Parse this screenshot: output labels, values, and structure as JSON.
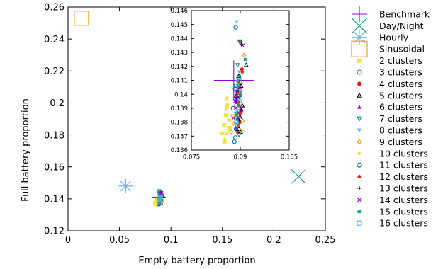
{
  "chart_data": {
    "type": "scatter",
    "title": "",
    "xlabel": "Empty battery proportion",
    "ylabel": "Full battery proportion",
    "xlim": [
      0,
      0.25
    ],
    "ylim": [
      0.12,
      0.26
    ],
    "xticks": [
      0,
      0.05,
      0.1,
      0.15,
      0.2,
      0.25
    ],
    "xtick_labels": [
      "0",
      "0.05",
      "0.1",
      "0.15",
      "0.2",
      "0.25"
    ],
    "yticks": [
      0.12,
      0.14,
      0.16,
      0.18,
      0.2,
      0.22,
      0.24,
      0.26
    ],
    "ytick_labels": [
      "0.12",
      "0.14",
      "0.16",
      "0.18",
      "0.2",
      "0.22",
      "0.24",
      "0.26"
    ],
    "grid": false,
    "legend_position": "outside-right",
    "series": [
      {
        "name": "Benchmark",
        "marker": "plus",
        "size": "large",
        "color": "#9400d3",
        "x": [
          0.088
        ],
        "y": [
          0.141
        ]
      },
      {
        "name": "Day/Night",
        "marker": "cross",
        "size": "large",
        "color": "#009e73",
        "x": [
          0.224
        ],
        "y": [
          0.154
        ]
      },
      {
        "name": "Hourly",
        "marker": "star",
        "size": "large",
        "color": "#56b4e9",
        "x": [
          0.056
        ],
        "y": [
          0.148
        ]
      },
      {
        "name": "Sinusoidal",
        "marker": "square-open",
        "size": "large",
        "color": "#e69f00",
        "x": [
          0.013
        ],
        "y": [
          0.253
        ]
      },
      {
        "name": "2 clusters",
        "marker": "square-filled",
        "color": "#f0e442",
        "x": [
          0.0845,
          0.085,
          0.0855,
          0.086,
          0.0852,
          0.0858,
          0.0865,
          0.087
        ],
        "y": [
          0.1372,
          0.1378,
          0.1385,
          0.1391,
          0.1366,
          0.1397,
          0.1382,
          0.1376
        ]
      },
      {
        "name": "3 clusters",
        "marker": "circle-open",
        "color": "#0072b2",
        "x": [
          0.0882,
          0.0887,
          0.0893,
          0.0878,
          0.0889,
          0.0884,
          0.0895,
          0.0886
        ],
        "y": [
          0.1366,
          0.1375,
          0.1382,
          0.139,
          0.1398,
          0.1404,
          0.1412,
          0.1448
        ]
      },
      {
        "name": "4 clusters",
        "marker": "circle-filled",
        "color": "#e51e10",
        "x": [
          0.0892,
          0.0898,
          0.0903,
          0.0889,
          0.0896,
          0.0894,
          0.0905,
          0.0899
        ],
        "y": [
          0.1373,
          0.138,
          0.1388,
          0.1395,
          0.1403,
          0.141,
          0.1418,
          0.1438
        ]
      },
      {
        "name": "5 clusters",
        "marker": "triangle-open",
        "color": "#000000",
        "x": [
          0.0893,
          0.0899,
          0.0906,
          0.0888,
          0.0902,
          0.0895,
          0.0918,
          0.0901
        ],
        "y": [
          0.1377,
          0.1384,
          0.1392,
          0.1399,
          0.1406,
          0.1413,
          0.1421,
          0.1373
        ]
      },
      {
        "name": "6 clusters",
        "marker": "triangle-filled",
        "color": "#9400d3",
        "x": [
          0.0886,
          0.0893,
          0.09,
          0.0891,
          0.0897,
          0.0904,
          0.0889,
          0.0895
        ],
        "y": [
          0.1376,
          0.1383,
          0.1391,
          0.1398,
          0.1405,
          0.1389,
          0.1402,
          0.1395
        ]
      },
      {
        "name": "7 clusters",
        "marker": "triangle-down-open",
        "color": "#009e73",
        "x": [
          0.0896,
          0.0891,
          0.0888,
          0.0894,
          0.0899,
          0.0901,
          0.0892,
          0.0897
        ],
        "y": [
          0.1371,
          0.1379,
          0.1386,
          0.1393,
          0.14,
          0.1407,
          0.1421,
          0.1438
        ]
      },
      {
        "name": "8 clusters",
        "marker": "triangle-down-filled",
        "color": "#56b4e9",
        "x": [
          0.0887,
          0.0894,
          0.0898,
          0.0892,
          0.0903,
          0.089,
          0.0896,
          0.0889
        ],
        "y": [
          0.1374,
          0.1381,
          0.1388,
          0.1395,
          0.1402,
          0.1409,
          0.1416,
          0.1452
        ]
      },
      {
        "name": "9 clusters",
        "marker": "diamond-open",
        "color": "#e69f00",
        "x": [
          0.0872,
          0.0879,
          0.0885,
          0.0901,
          0.0907,
          0.0896,
          0.0893,
          0.0912
        ],
        "y": [
          0.1373,
          0.1379,
          0.1385,
          0.1374,
          0.1381,
          0.1392,
          0.1399,
          0.1428
        ]
      },
      {
        "name": "10 clusters",
        "marker": "diamond-filled",
        "color": "#f0e442",
        "x": [
          0.0852,
          0.0858,
          0.0863,
          0.0868,
          0.0873,
          0.0856,
          0.0861,
          0.0866,
          0.0877,
          0.0882,
          0.0849
        ],
        "y": [
          0.1368,
          0.1372,
          0.1376,
          0.1381,
          0.1385,
          0.1389,
          0.1393,
          0.1374,
          0.1379,
          0.1384,
          0.1366
        ]
      },
      {
        "name": "11 clusters",
        "marker": "circle-open",
        "color": "#0072b2",
        "x": [
          0.0885,
          0.089,
          0.0893,
          0.0888,
          0.0897,
          0.0886
        ],
        "y": [
          0.1369,
          0.1377,
          0.1385,
          0.1392,
          0.1399,
          0.1406
        ]
      },
      {
        "name": "12 clusters",
        "marker": "pentagon-filled",
        "color": "#e51e10",
        "x": [
          0.0893,
          0.0899,
          0.0891,
          0.0897,
          0.0906,
          0.0895
        ],
        "y": [
          0.1378,
          0.1386,
          0.1394,
          0.1401,
          0.1416,
          0.1409
        ]
      },
      {
        "name": "13 clusters",
        "marker": "plus",
        "color": "#000000",
        "x": [
          0.0891,
          0.0896,
          0.0902,
          0.0888,
          0.0894,
          0.0899,
          0.0903,
          0.089
        ],
        "y": [
          0.1374,
          0.1381,
          0.1389,
          0.1396,
          0.1403,
          0.141,
          0.1436,
          0.1398
        ]
      },
      {
        "name": "14 clusters",
        "marker": "cross",
        "color": "#9400d3",
        "x": [
          0.0879,
          0.0886,
          0.0892,
          0.0898,
          0.0907,
          0.0884,
          0.0895
        ],
        "y": [
          0.1383,
          0.139,
          0.1398,
          0.1405,
          0.1435,
          0.1395,
          0.1387
        ]
      },
      {
        "name": "15 clusters",
        "marker": "star",
        "color": "#009e73",
        "x": [
          0.0889,
          0.0895,
          0.09,
          0.0893,
          0.0898,
          0.0915
        ],
        "y": [
          0.1385,
          0.1392,
          0.1399,
          0.1406,
          0.1413,
          0.1425
        ]
      },
      {
        "name": "16 clusters",
        "marker": "square-open",
        "color": "#56b4e9",
        "x": [
          0.0888,
          0.0893,
          0.0897,
          0.0891,
          0.0899
        ],
        "y": [
          0.138,
          0.1388,
          0.1395,
          0.1402,
          0.1409
        ]
      }
    ],
    "inset": {
      "xlim": [
        0.075,
        0.105
      ],
      "ylim": [
        0.136,
        0.146
      ],
      "xticks": [
        0.075,
        0.09,
        0.105
      ],
      "xtick_labels": [
        "0.075",
        "0.09",
        "0.105"
      ],
      "yticks": [
        0.136,
        0.137,
        0.138,
        0.139,
        0.14,
        0.141,
        0.142,
        0.143,
        0.144,
        0.145,
        0.146
      ],
      "ytick_labels": [
        "0.136",
        "0.137",
        "0.138",
        "0.139",
        "0.14",
        "0.141",
        "0.142",
        "0.143",
        "0.144",
        "0.145",
        "0.146"
      ]
    }
  }
}
